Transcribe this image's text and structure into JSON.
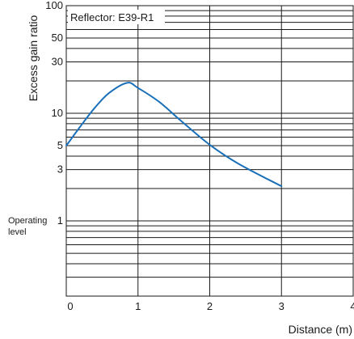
{
  "chart_data": {
    "type": "line",
    "xlabel": "Distance (m)",
    "ylabel": "Excess gain ratio",
    "xlim": [
      0,
      4
    ],
    "ylim": [
      0.2,
      100
    ],
    "yscale": "log",
    "grid": true,
    "x_ticks": [
      "0",
      "1",
      "2",
      "3",
      "4"
    ],
    "y_ticks": [
      {
        "value": 100,
        "label": "100"
      },
      {
        "value": 50,
        "label": "50"
      },
      {
        "value": 30,
        "label": "30"
      },
      {
        "value": 10,
        "label": "10"
      },
      {
        "value": 5,
        "label": "5"
      },
      {
        "value": 3,
        "label": "3"
      }
    ],
    "operating_level": {
      "value": 1,
      "label": "1",
      "text_line1": "Operating",
      "text_line2": "level"
    },
    "series": [
      {
        "name": "Reflector: E39-R1",
        "color": "#1a70b8",
        "x": [
          0,
          0.2,
          0.4,
          0.6,
          0.85,
          1.0,
          1.3,
          1.6,
          2.0,
          2.4,
          3.0
        ],
        "y": [
          5,
          7.6,
          11.3,
          15.5,
          19.2,
          17.2,
          12.7,
          8.5,
          5.1,
          3.4,
          2.1
        ]
      }
    ],
    "legend": {
      "text": "Reflector: E39-R1",
      "placement": "top-left"
    }
  }
}
